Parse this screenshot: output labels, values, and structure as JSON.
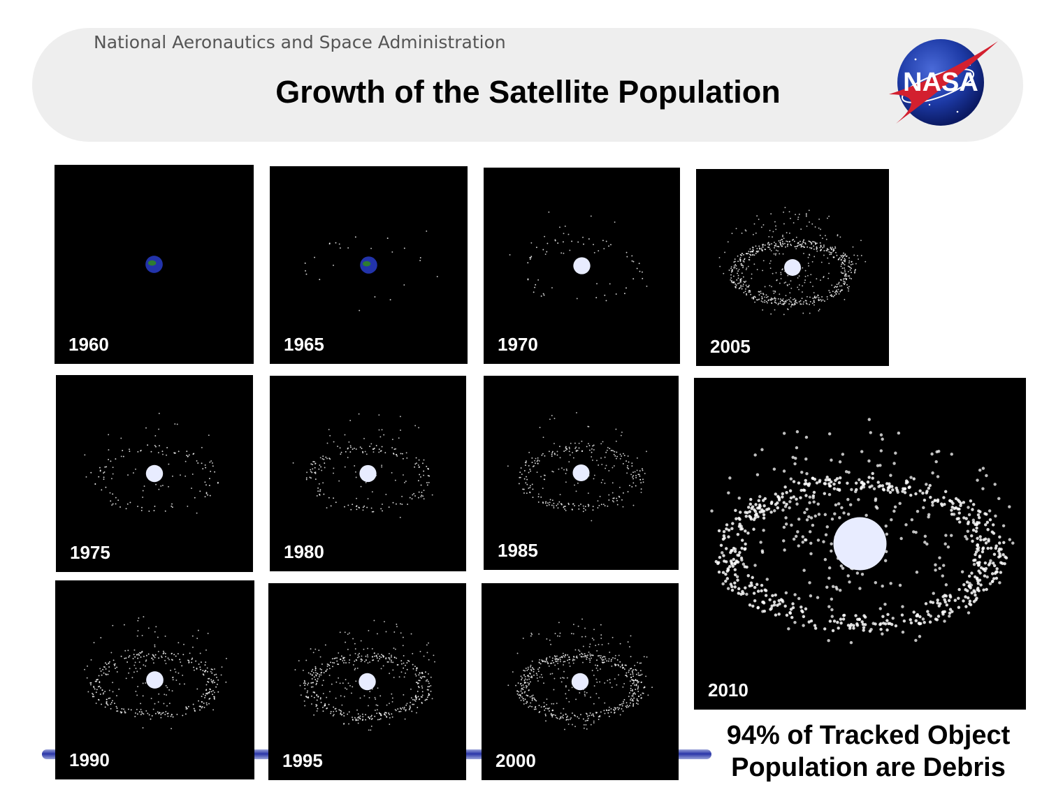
{
  "header": {
    "agency": "National Aeronautics and Space Administration",
    "title": "Growth of the Satellite Population",
    "logo_text": "NASA"
  },
  "panels": [
    {
      "year": "1960",
      "density": 0
    },
    {
      "year": "1965",
      "density": 1
    },
    {
      "year": "1970",
      "density": 2
    },
    {
      "year": "2005",
      "density": 9
    },
    {
      "year": "1975",
      "density": 3
    },
    {
      "year": "1980",
      "density": 4
    },
    {
      "year": "1985",
      "density": 5
    },
    {
      "year": "2010",
      "density": 10
    },
    {
      "year": "1990",
      "density": 6
    },
    {
      "year": "1995",
      "density": 7
    },
    {
      "year": "2000",
      "density": 8
    }
  ],
  "caption": {
    "line1": "94% of Tracked Object",
    "line2": "Population are Debris"
  },
  "colors": {
    "panel_bg": "#000000",
    "debris": "#ffffff",
    "earth_blue": "#2233aa",
    "earth_green": "#2e7d32",
    "accent_blue": "#2a36a8",
    "nasa_red": "#d3202f"
  }
}
